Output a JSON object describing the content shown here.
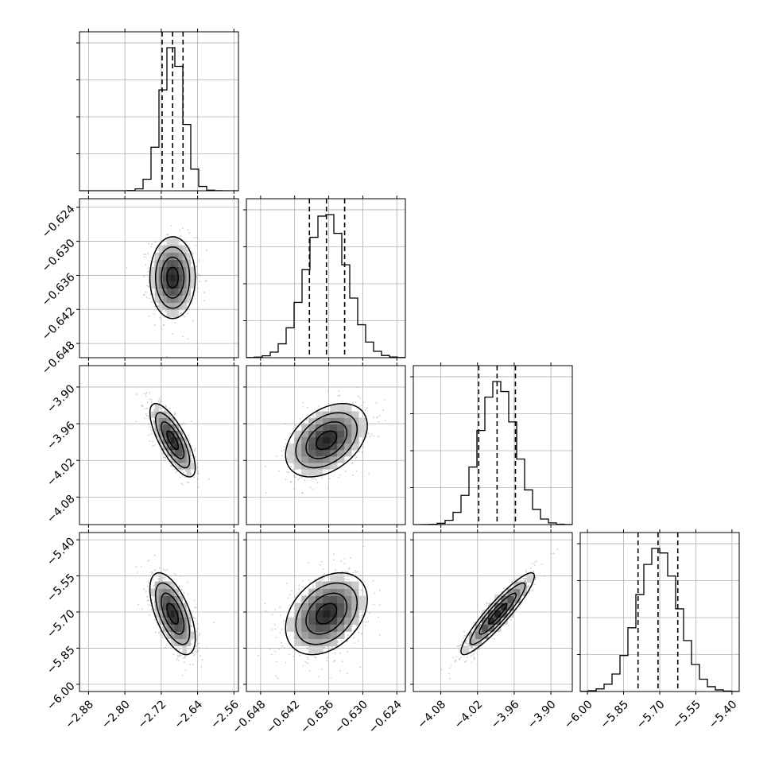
{
  "chart_data": {
    "type": "corner",
    "grid": true,
    "colors": {
      "contour": "#000000",
      "density": "#000000",
      "points": "#999999",
      "grid": "#b0b0b0"
    },
    "variables": [
      {
        "index": 0,
        "mean": -2.695,
        "sd": 0.025,
        "range": [
          -2.9,
          -2.55
        ],
        "ticks": [
          "-2.88",
          "-2.80",
          "-2.72",
          "-2.64",
          "-2.56"
        ],
        "quantiles": [
          -2.718,
          -2.695,
          -2.672
        ]
      },
      {
        "index": 1,
        "mean": -0.6364,
        "sd": 0.0036,
        "range": [
          -0.6505,
          -0.6225
        ],
        "ticks": [
          "-0.648",
          "-0.642",
          "-0.636",
          "-0.630",
          "-0.624"
        ],
        "quantiles": [
          -0.6394,
          -0.6364,
          -0.6332
        ]
      },
      {
        "index": 2,
        "mean": -3.987,
        "sd": 0.03,
        "range": [
          -4.125,
          -3.865
        ],
        "ticks": [
          "-4.08",
          "-4.02",
          "-3.96",
          "-3.90"
        ],
        "quantiles": [
          -4.018,
          -3.988,
          -3.958
        ]
      },
      {
        "index": 3,
        "mean": -5.707,
        "sd": 0.085,
        "range": [
          -6.03,
          -5.37
        ],
        "ticks": [
          "-6.00",
          "-5.85",
          "-5.70",
          "-5.55",
          "-5.40"
        ],
        "quantiles": [
          -5.79,
          -5.707,
          -5.625
        ]
      }
    ],
    "correlations": [
      [
        1.0,
        0.0,
        -0.75,
        -0.6
      ],
      [
        0.0,
        1.0,
        0.4,
        0.35
      ],
      [
        -0.75,
        0.4,
        1.0,
        0.92
      ],
      [
        -0.6,
        0.35,
        0.92,
        1.0
      ]
    ],
    "histogram_bins": 20,
    "contour_levels": [
      0.5,
      1.0,
      1.5,
      2.0
    ]
  }
}
